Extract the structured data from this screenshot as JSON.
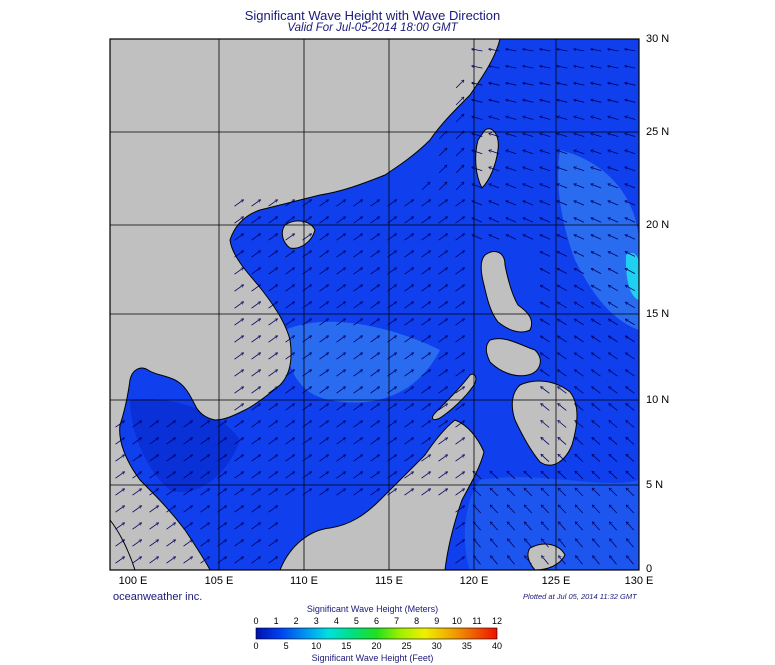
{
  "title": "Significant Wave Height with Wave Direction",
  "subtitle": "Valid For Jul-05-2014 18:00 GMT",
  "lon_labels": [
    "100 E",
    "105 E",
    "110 E",
    "115 E",
    "120 E",
    "125 E",
    "130 E"
  ],
  "lat_labels": [
    "30 N",
    "25 N",
    "20 N",
    "15 N",
    "10 N",
    "5 N",
    "0"
  ],
  "credit": "oceanweather inc.",
  "plotted": "Plotted at Jul 05, 2014 11:32 GMT",
  "colorbar": {
    "title_top": "Significant Wave Height (Meters)",
    "title_bottom": "Significant Wave Height (Feet)",
    "meter_ticks": [
      "0",
      "1",
      "2",
      "3",
      "4",
      "5",
      "6",
      "7",
      "8",
      "9",
      "10",
      "11",
      "12"
    ],
    "feet_ticks": [
      "0",
      "5",
      "10",
      "15",
      "20",
      "25",
      "30",
      "35",
      "40"
    ]
  },
  "colors": {
    "land": "#c0c0c0",
    "sea_base": "#1040ee",
    "sea_light": "#2a6cf0",
    "sea_dark": "#0a1fc8",
    "cyan_patch": "#20d0f0",
    "arrow": "#000060",
    "title": "#1a1a7a"
  }
}
